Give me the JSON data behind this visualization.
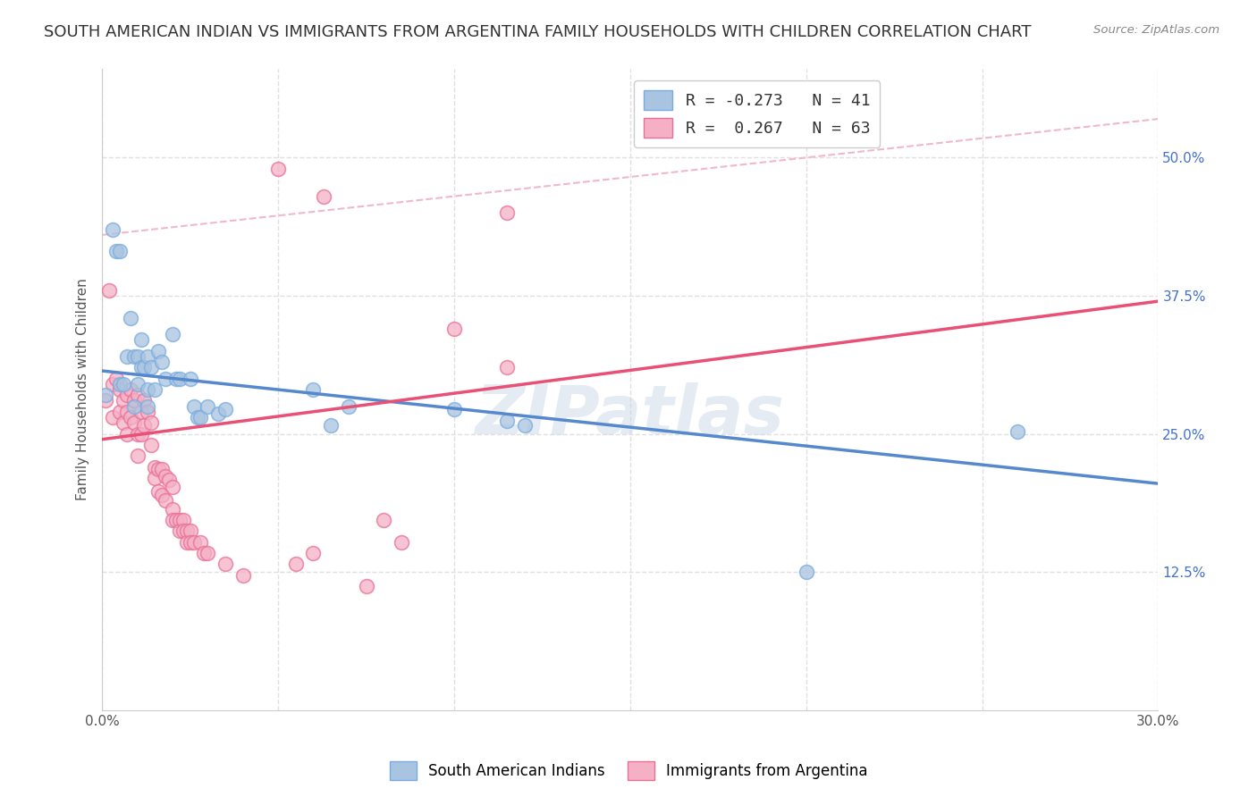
{
  "title": "SOUTH AMERICAN INDIAN VS IMMIGRANTS FROM ARGENTINA FAMILY HOUSEHOLDS WITH CHILDREN CORRELATION CHART",
  "source": "Source: ZipAtlas.com",
  "ylabel": "Family Households with Children",
  "xlim": [
    0.0,
    0.3
  ],
  "ylim": [
    0.0,
    0.58
  ],
  "xticks": [
    0.0,
    0.05,
    0.1,
    0.15,
    0.2,
    0.25,
    0.3
  ],
  "xtick_labels": [
    "0.0%",
    "",
    "",
    "",
    "",
    "",
    "30.0%"
  ],
  "ytick_right": [
    0.125,
    0.25,
    0.375,
    0.5
  ],
  "ytick_right_labels": [
    "12.5%",
    "25.0%",
    "37.5%",
    "50.0%"
  ],
  "blue_color": "#a8c4e0",
  "pink_color": "#f5b0c5",
  "blue_edge": "#7aabde",
  "pink_edge": "#e87098",
  "blue_line_color": "#5588cc",
  "pink_line_color": "#e85075",
  "diag_line_color": "#f0b8cc",
  "blue_scatter": [
    [
      0.001,
      0.285
    ],
    [
      0.003,
      0.435
    ],
    [
      0.004,
      0.415
    ],
    [
      0.005,
      0.415
    ],
    [
      0.005,
      0.295
    ],
    [
      0.006,
      0.295
    ],
    [
      0.007,
      0.32
    ],
    [
      0.008,
      0.355
    ],
    [
      0.009,
      0.32
    ],
    [
      0.009,
      0.275
    ],
    [
      0.01,
      0.32
    ],
    [
      0.01,
      0.295
    ],
    [
      0.011,
      0.335
    ],
    [
      0.011,
      0.31
    ],
    [
      0.012,
      0.31
    ],
    [
      0.013,
      0.32
    ],
    [
      0.013,
      0.29
    ],
    [
      0.014,
      0.31
    ],
    [
      0.015,
      0.29
    ],
    [
      0.016,
      0.325
    ],
    [
      0.017,
      0.315
    ],
    [
      0.018,
      0.3
    ],
    [
      0.02,
      0.34
    ],
    [
      0.021,
      0.3
    ],
    [
      0.022,
      0.3
    ],
    [
      0.025,
      0.3
    ],
    [
      0.026,
      0.275
    ],
    [
      0.027,
      0.265
    ],
    [
      0.028,
      0.265
    ],
    [
      0.03,
      0.275
    ],
    [
      0.033,
      0.268
    ],
    [
      0.035,
      0.272
    ],
    [
      0.06,
      0.29
    ],
    [
      0.065,
      0.258
    ],
    [
      0.07,
      0.275
    ],
    [
      0.1,
      0.272
    ],
    [
      0.115,
      0.262
    ],
    [
      0.12,
      0.258
    ],
    [
      0.26,
      0.252
    ],
    [
      0.2,
      0.125
    ],
    [
      0.013,
      0.275
    ]
  ],
  "pink_scatter": [
    [
      0.001,
      0.28
    ],
    [
      0.002,
      0.38
    ],
    [
      0.003,
      0.295
    ],
    [
      0.003,
      0.265
    ],
    [
      0.004,
      0.3
    ],
    [
      0.005,
      0.29
    ],
    [
      0.005,
      0.27
    ],
    [
      0.006,
      0.28
    ],
    [
      0.006,
      0.26
    ],
    [
      0.007,
      0.285
    ],
    [
      0.007,
      0.27
    ],
    [
      0.007,
      0.25
    ],
    [
      0.008,
      0.29
    ],
    [
      0.008,
      0.265
    ],
    [
      0.009,
      0.28
    ],
    [
      0.009,
      0.26
    ],
    [
      0.01,
      0.285
    ],
    [
      0.01,
      0.25
    ],
    [
      0.01,
      0.23
    ],
    [
      0.011,
      0.27
    ],
    [
      0.011,
      0.25
    ],
    [
      0.012,
      0.28
    ],
    [
      0.012,
      0.258
    ],
    [
      0.013,
      0.27
    ],
    [
      0.014,
      0.26
    ],
    [
      0.014,
      0.24
    ],
    [
      0.015,
      0.22
    ],
    [
      0.015,
      0.21
    ],
    [
      0.016,
      0.218
    ],
    [
      0.016,
      0.198
    ],
    [
      0.017,
      0.218
    ],
    [
      0.017,
      0.195
    ],
    [
      0.018,
      0.212
    ],
    [
      0.018,
      0.19
    ],
    [
      0.019,
      0.208
    ],
    [
      0.02,
      0.202
    ],
    [
      0.02,
      0.182
    ],
    [
      0.02,
      0.172
    ],
    [
      0.021,
      0.172
    ],
    [
      0.022,
      0.172
    ],
    [
      0.022,
      0.162
    ],
    [
      0.023,
      0.172
    ],
    [
      0.023,
      0.162
    ],
    [
      0.024,
      0.162
    ],
    [
      0.024,
      0.152
    ],
    [
      0.025,
      0.162
    ],
    [
      0.025,
      0.152
    ],
    [
      0.026,
      0.152
    ],
    [
      0.028,
      0.152
    ],
    [
      0.029,
      0.142
    ],
    [
      0.03,
      0.142
    ],
    [
      0.035,
      0.132
    ],
    [
      0.04,
      0.122
    ],
    [
      0.055,
      0.132
    ],
    [
      0.06,
      0.142
    ],
    [
      0.075,
      0.112
    ],
    [
      0.08,
      0.172
    ],
    [
      0.085,
      0.152
    ],
    [
      0.05,
      0.49
    ],
    [
      0.063,
      0.465
    ],
    [
      0.1,
      0.345
    ],
    [
      0.115,
      0.31
    ],
    [
      0.115,
      0.45
    ]
  ],
  "blue_line": {
    "x0": 0.0,
    "x1": 0.3,
    "y0": 0.307,
    "y1": 0.205
  },
  "pink_line": {
    "x0": 0.0,
    "x1": 0.3,
    "y0": 0.245,
    "y1": 0.37
  },
  "diag_line": {
    "x0": 0.0,
    "x1": 0.3,
    "y0": 0.43,
    "y1": 0.535
  },
  "watermark": "ZIPatlas",
  "background_color": "#ffffff",
  "grid_color": "#e0e0e0",
  "title_fontsize": 13,
  "axis_label_fontsize": 11,
  "legend_label_blue": "R = -0.273   N = 41",
  "legend_label_pink": "R =  0.267   N = 63",
  "bottom_legend_blue": "South American Indians",
  "bottom_legend_pink": "Immigrants from Argentina"
}
